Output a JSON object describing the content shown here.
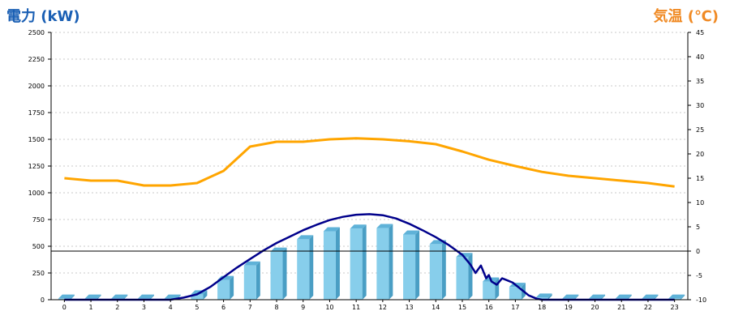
{
  "chart_data": {
    "type": "bar",
    "title": "",
    "y_left": {
      "label": "電力 (kW)",
      "range": [
        0,
        2500
      ],
      "ticks": [
        0,
        250,
        500,
        750,
        1000,
        1250,
        1500,
        1750,
        2000,
        2250,
        2500
      ],
      "color": "#1a5fb4"
    },
    "y_right": {
      "label": "気温 (℃)",
      "range": [
        -10,
        45
      ],
      "ticks": [
        -10,
        -5,
        0,
        5,
        10,
        15,
        20,
        25,
        30,
        35,
        40,
        45
      ],
      "color": "#f08a24"
    },
    "categories": [
      "0",
      "1",
      "2",
      "3",
      "4",
      "5",
      "6",
      "7",
      "8",
      "9",
      "10",
      "11",
      "12",
      "13",
      "14",
      "15",
      "16",
      "17",
      "18",
      "19",
      "20",
      "21",
      "22",
      "23"
    ],
    "grid": true,
    "series": [
      {
        "kind": "bar",
        "axis": "left",
        "color": "#87ceeb",
        "side_color": "#4a9ec4",
        "top_color": "#5fb2d8",
        "values": [
          10,
          10,
          10,
          10,
          10,
          50,
          185,
          320,
          450,
          565,
          640,
          665,
          670,
          610,
          520,
          400,
          170,
          120,
          20,
          10,
          10,
          10,
          10,
          10
        ]
      },
      {
        "kind": "line",
        "axis": "left",
        "color": "#00008b",
        "x": [
          0,
          1,
          2,
          3,
          4,
          4.5,
          5,
          5.5,
          6,
          6.5,
          7,
          7.5,
          8,
          8.5,
          9,
          9.5,
          10,
          10.5,
          11,
          11.5,
          12,
          12.5,
          13,
          13.5,
          14,
          14.5,
          15,
          15.3,
          15.5,
          15.7,
          15.9,
          16,
          16.1,
          16.3,
          16.5,
          16.7,
          16.9,
          17.1,
          17.3,
          17.5,
          17.8,
          18,
          19,
          20,
          21,
          22,
          23
        ],
        "values": [
          0,
          0,
          0,
          0,
          0,
          20,
          50,
          120,
          210,
          300,
          380,
          460,
          530,
          590,
          650,
          700,
          745,
          775,
          795,
          800,
          790,
          760,
          710,
          650,
          585,
          510,
          420,
          330,
          250,
          320,
          200,
          230,
          170,
          140,
          200,
          180,
          160,
          120,
          80,
          40,
          10,
          0,
          0,
          0,
          0,
          0,
          0
        ]
      },
      {
        "kind": "line",
        "axis": "right",
        "color": "#ffa500",
        "values": [
          15,
          14.5,
          14.5,
          13.5,
          13.5,
          14,
          16.5,
          21.5,
          22.5,
          22.5,
          23,
          23.2,
          23,
          22.6,
          22,
          20.5,
          18.8,
          17.5,
          16.3,
          15.5,
          15,
          14.5,
          14,
          13.3
        ]
      }
    ]
  }
}
